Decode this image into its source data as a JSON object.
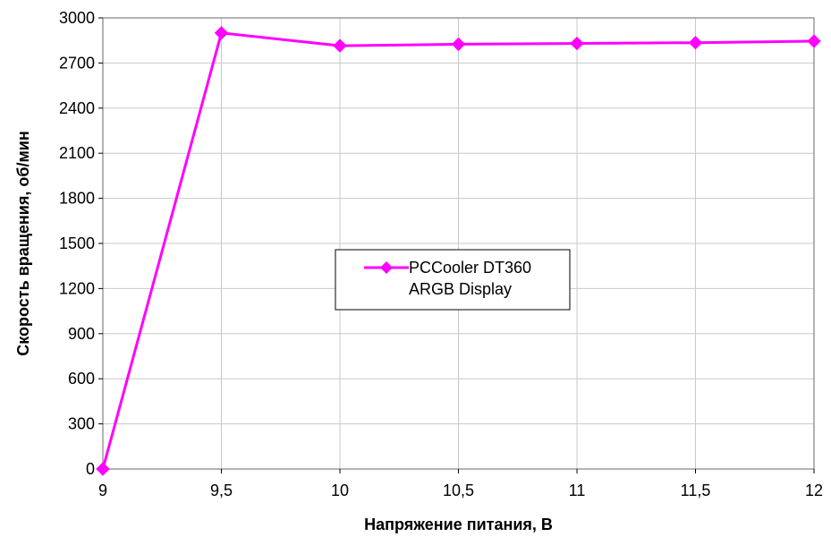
{
  "chart_data": {
    "type": "line",
    "title": "",
    "xlabel": "Напряжение питания, В",
    "ylabel": "Скорость вращения, об/мин",
    "x": [
      9,
      9.5,
      10,
      10.5,
      11,
      11.5,
      12
    ],
    "x_tick_labels": [
      "9",
      "9,5",
      "10",
      "10,5",
      "11",
      "11,5",
      "12"
    ],
    "xlim": [
      9,
      12
    ],
    "y_ticks": [
      0,
      300,
      600,
      900,
      1200,
      1500,
      1800,
      2100,
      2400,
      2700,
      3000
    ],
    "y_tick_labels": [
      "0",
      "300",
      "600",
      "900",
      "1200",
      "1500",
      "1800",
      "2100",
      "2400",
      "2700",
      "3000"
    ],
    "ylim": [
      0,
      3000
    ],
    "grid": true,
    "legend_position": "center",
    "series": [
      {
        "name": "PCCooler DT360 ARGB Display",
        "legend_lines": [
          "PCCooler DT360",
          "ARGB Display"
        ],
        "color": "#ff00ff",
        "marker": "diamond",
        "values": [
          0,
          2900,
          2815,
          2825,
          2830,
          2835,
          2845
        ]
      }
    ]
  }
}
